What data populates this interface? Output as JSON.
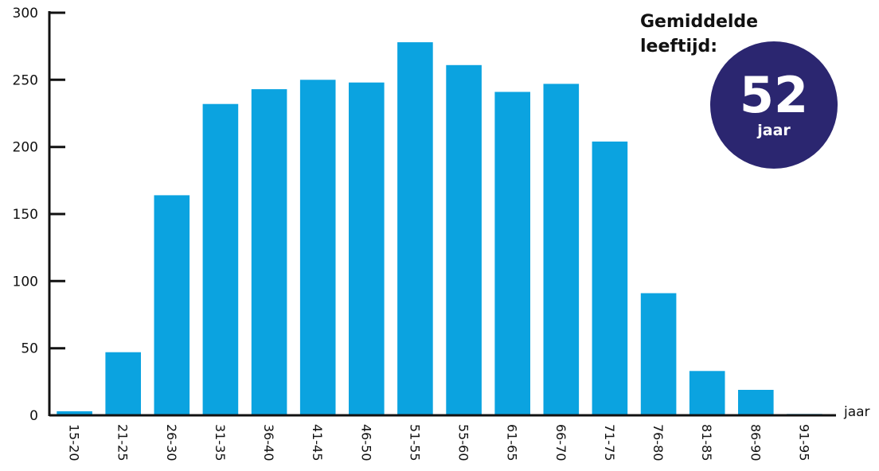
{
  "chart_data": {
    "type": "bar",
    "categories": [
      "15-20",
      "21-25",
      "26-30",
      "31-35",
      "36-40",
      "41-45",
      "46-50",
      "51-55",
      "55-60",
      "61-65",
      "66-70",
      "71-75",
      "76-80",
      "81-85",
      "86-90",
      "91-95"
    ],
    "values": [
      3,
      47,
      164,
      232,
      243,
      250,
      248,
      278,
      261,
      241,
      247,
      204,
      91,
      33,
      19,
      1
    ],
    "xlabel": "jaar",
    "ylabel": "",
    "ylim": [
      0,
      300
    ],
    "yticks": [
      0,
      50,
      100,
      150,
      200,
      250,
      300
    ],
    "grid": false,
    "colors": {
      "bar": "#0ba3e0",
      "axis": "#111111",
      "badge": "#2b2670"
    }
  },
  "annotation": {
    "title_line1": "Gemiddelde",
    "title_line2": "leeftijd:",
    "value": "52",
    "unit": "jaar"
  }
}
